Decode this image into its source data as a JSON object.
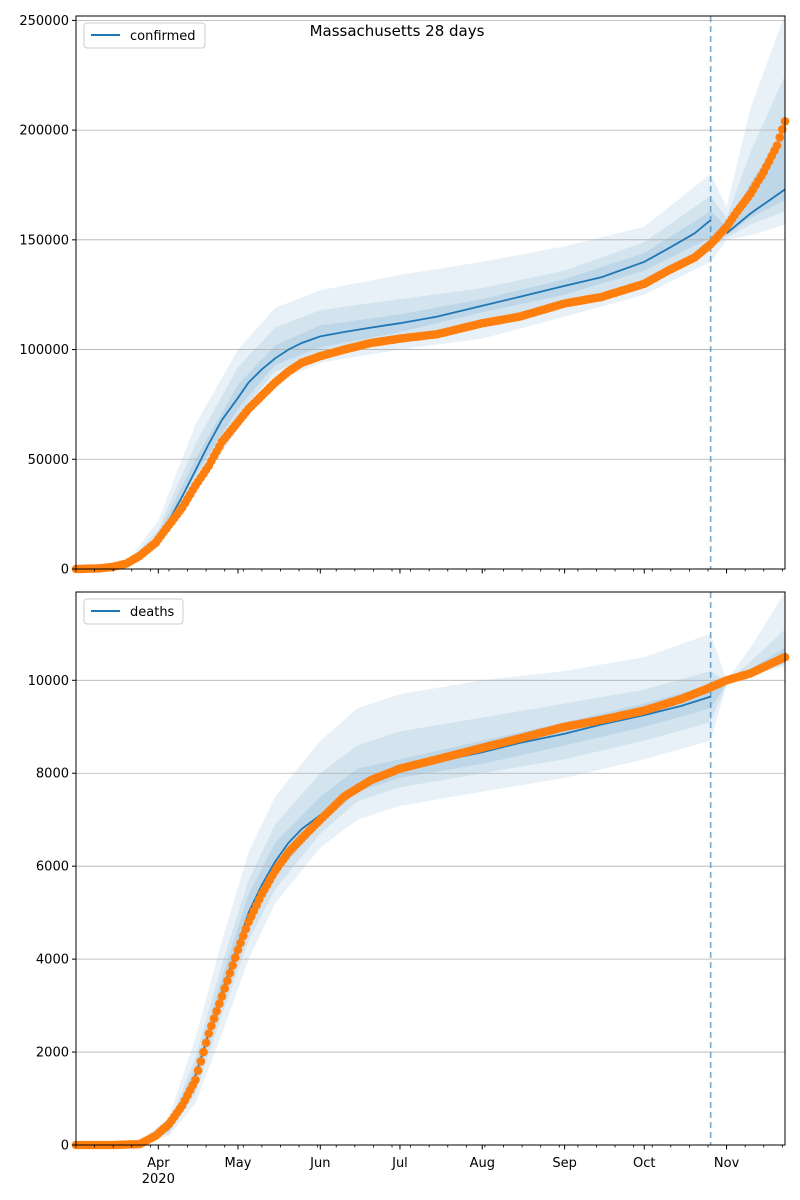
{
  "figure": {
    "title": "Massachusetts 28 days"
  },
  "colors": {
    "model_line": "#1f77b4",
    "observed_points": "#ff7f0e",
    "band_fill": "#1f77b4",
    "forecast_marker": "#1f77b4",
    "grid": "#b0b0b0"
  },
  "x_axis": {
    "tick_labels": [
      "Apr",
      "May",
      "Jun",
      "Jul",
      "Aug",
      "Sep",
      "Oct",
      "Nov"
    ],
    "tick_dates": [
      "2020-04-01",
      "2020-05-01",
      "2020-06-01",
      "2020-07-01",
      "2020-08-01",
      "2020-09-01",
      "2020-10-01",
      "2020-11-01"
    ],
    "year_label": "2020",
    "range": [
      "2020-03-01",
      "2020-11-23"
    ],
    "forecast_start": "2020-10-26"
  },
  "chart_data": [
    {
      "type": "line",
      "panel": "top",
      "legend": [
        "confirmed"
      ],
      "legend_position": "top-left",
      "grid": "horizontal",
      "ylim": [
        0,
        252000
      ],
      "y_ticks": [
        0,
        50000,
        100000,
        150000,
        200000,
        250000
      ],
      "y_tick_labels": [
        "0",
        "50000",
        "100000",
        "150000",
        "200000",
        "250000"
      ],
      "model": {
        "name": "confirmed",
        "x": [
          "2020-03-01",
          "2020-03-10",
          "2020-03-20",
          "2020-03-25",
          "2020-03-31",
          "2020-04-05",
          "2020-04-10",
          "2020-04-15",
          "2020-04-20",
          "2020-04-25",
          "2020-05-01",
          "2020-05-05",
          "2020-05-10",
          "2020-05-15",
          "2020-05-20",
          "2020-05-25",
          "2020-06-01",
          "2020-06-10",
          "2020-06-20",
          "2020-07-01",
          "2020-07-15",
          "2020-08-01",
          "2020-08-15",
          "2020-09-01",
          "2020-09-15",
          "2020-10-01",
          "2020-10-10",
          "2020-10-20",
          "2020-10-26",
          "2020-11-01",
          "2020-11-10",
          "2020-11-23"
        ],
        "y": [
          0,
          200,
          1500,
          5000,
          12000,
          22000,
          33000,
          45000,
          57000,
          68000,
          78000,
          85000,
          91000,
          96000,
          100000,
          103000,
          106000,
          108000,
          110000,
          112000,
          115000,
          120000,
          124000,
          129000,
          133000,
          140000,
          146000,
          153000,
          159000,
          153000,
          162000,
          173000
        ]
      },
      "bands": [
        {
          "name": "outer",
          "x": [
            "2020-03-01",
            "2020-03-20",
            "2020-04-01",
            "2020-04-15",
            "2020-05-01",
            "2020-05-15",
            "2020-06-01",
            "2020-07-01",
            "2020-08-01",
            "2020-09-01",
            "2020-10-01",
            "2020-10-26",
            "2020-11-01",
            "2020-11-10",
            "2020-11-23"
          ],
          "lower": [
            0,
            500,
            10000,
            35000,
            64000,
            85000,
            94000,
            100000,
            105000,
            115000,
            125000,
            140000,
            150000,
            152000,
            157000
          ],
          "upper": [
            0,
            3000,
            22000,
            66000,
            100000,
            119000,
            127000,
            134000,
            140000,
            147000,
            156000,
            180000,
            165000,
            210000,
            253000
          ]
        },
        {
          "name": "middle",
          "x": [
            "2020-03-01",
            "2020-03-20",
            "2020-04-01",
            "2020-04-15",
            "2020-05-01",
            "2020-05-15",
            "2020-06-01",
            "2020-07-01",
            "2020-08-01",
            "2020-09-01",
            "2020-10-01",
            "2020-10-26",
            "2020-11-01",
            "2020-11-10",
            "2020-11-23"
          ],
          "lower": [
            0,
            1000,
            12000,
            40000,
            70000,
            90000,
            98000,
            105000,
            112000,
            121000,
            131000,
            146000,
            151000,
            157000,
            163000
          ],
          "upper": [
            0,
            2000,
            18000,
            57000,
            92000,
            110000,
            118000,
            123000,
            128000,
            136000,
            149000,
            170000,
            160000,
            190000,
            225000
          ]
        },
        {
          "name": "inner",
          "x": [
            "2020-03-01",
            "2020-03-20",
            "2020-04-01",
            "2020-04-15",
            "2020-05-01",
            "2020-05-15",
            "2020-06-01",
            "2020-07-01",
            "2020-08-01",
            "2020-09-01",
            "2020-10-01",
            "2020-10-26",
            "2020-11-01",
            "2020-11-10",
            "2020-11-23"
          ],
          "lower": [
            0,
            1300,
            13000,
            43000,
            73000,
            93000,
            101000,
            108000,
            117000,
            125000,
            136000,
            151000,
            152000,
            160000,
            168000
          ],
          "upper": [
            0,
            1700,
            16000,
            50000,
            84000,
            102000,
            111000,
            116000,
            123000,
            132000,
            144000,
            163000,
            156000,
            176000,
            200000
          ]
        }
      ],
      "observed": {
        "x": [
          "2020-03-01",
          "2020-03-10",
          "2020-03-15",
          "2020-03-20",
          "2020-03-25",
          "2020-03-31",
          "2020-04-05",
          "2020-04-10",
          "2020-04-15",
          "2020-04-20",
          "2020-04-25",
          "2020-05-01",
          "2020-05-05",
          "2020-05-10",
          "2020-05-15",
          "2020-05-20",
          "2020-05-25",
          "2020-06-01",
          "2020-06-10",
          "2020-06-20",
          "2020-07-01",
          "2020-07-15",
          "2020-08-01",
          "2020-08-15",
          "2020-09-01",
          "2020-09-15",
          "2020-10-01",
          "2020-10-10",
          "2020-10-20",
          "2020-10-26",
          "2020-11-01",
          "2020-11-05",
          "2020-11-10",
          "2020-11-15",
          "2020-11-20",
          "2020-11-23"
        ],
        "y": [
          0,
          300,
          1000,
          2500,
          6000,
          12000,
          20000,
          28000,
          38000,
          47000,
          58000,
          67000,
          73000,
          79000,
          85000,
          90000,
          94000,
          97000,
          100000,
          103000,
          105000,
          107000,
          112000,
          115000,
          121000,
          124000,
          130000,
          136000,
          142000,
          148000,
          156000,
          163000,
          171000,
          181000,
          193000,
          204000
        ]
      }
    },
    {
      "type": "line",
      "panel": "bottom",
      "legend": [
        "deaths"
      ],
      "legend_position": "top-left",
      "grid": "horizontal",
      "ylim": [
        0,
        11900
      ],
      "y_ticks": [
        0,
        2000,
        4000,
        6000,
        8000,
        10000
      ],
      "y_tick_labels": [
        "0",
        "2000",
        "4000",
        "6000",
        "8000",
        "10000"
      ],
      "model": {
        "name": "deaths",
        "x": [
          "2020-03-01",
          "2020-03-20",
          "2020-03-31",
          "2020-04-05",
          "2020-04-10",
          "2020-04-15",
          "2020-04-20",
          "2020-04-25",
          "2020-05-01",
          "2020-05-05",
          "2020-05-10",
          "2020-05-15",
          "2020-05-20",
          "2020-05-25",
          "2020-06-01",
          "2020-06-10",
          "2020-06-20",
          "2020-07-01",
          "2020-07-15",
          "2020-08-01",
          "2020-08-15",
          "2020-09-01",
          "2020-09-15",
          "2020-10-01",
          "2020-10-15",
          "2020-10-26",
          "2020-11-01",
          "2020-11-10",
          "2020-11-23"
        ],
        "y": [
          0,
          20,
          150,
          350,
          800,
          1500,
          2400,
          3300,
          4300,
          5000,
          5600,
          6100,
          6500,
          6800,
          7100,
          7500,
          7800,
          8050,
          8250,
          8450,
          8650,
          8850,
          9050,
          9250,
          9450,
          9650,
          9950,
          10150,
          10450
        ]
      },
      "bands": [
        {
          "name": "outer",
          "x": [
            "2020-03-01",
            "2020-03-25",
            "2020-04-05",
            "2020-04-15",
            "2020-04-25",
            "2020-05-05",
            "2020-05-15",
            "2020-06-01",
            "2020-06-15",
            "2020-07-01",
            "2020-08-01",
            "2020-09-01",
            "2020-10-01",
            "2020-10-26",
            "2020-11-01",
            "2020-11-10",
            "2020-11-23"
          ],
          "lower": [
            0,
            20,
            200,
            900,
            2400,
            4000,
            5200,
            6400,
            7000,
            7300,
            7600,
            7900,
            8300,
            8700,
            9900,
            10100,
            10300
          ],
          "upper": [
            0,
            80,
            600,
            2300,
            4400,
            6300,
            7500,
            8700,
            9400,
            9700,
            10000,
            10200,
            10500,
            11000,
            10000,
            10700,
            11900
          ]
        },
        {
          "name": "middle",
          "x": [
            "2020-03-01",
            "2020-03-25",
            "2020-04-05",
            "2020-04-15",
            "2020-04-25",
            "2020-05-05",
            "2020-05-15",
            "2020-06-01",
            "2020-06-15",
            "2020-07-01",
            "2020-08-01",
            "2020-09-01",
            "2020-10-01",
            "2020-10-26",
            "2020-11-01",
            "2020-11-10",
            "2020-11-23"
          ],
          "lower": [
            0,
            30,
            250,
            1100,
            2800,
            4400,
            5500,
            6700,
            7400,
            7700,
            8000,
            8300,
            8700,
            9100,
            9920,
            10120,
            10350
          ],
          "upper": [
            0,
            60,
            450,
            1900,
            3900,
            5700,
            6900,
            8000,
            8600,
            8900,
            9200,
            9500,
            9800,
            10200,
            9980,
            10400,
            11100
          ]
        },
        {
          "name": "inner",
          "x": [
            "2020-03-01",
            "2020-03-25",
            "2020-04-05",
            "2020-04-15",
            "2020-04-25",
            "2020-05-05",
            "2020-05-15",
            "2020-06-01",
            "2020-06-15",
            "2020-07-01",
            "2020-08-01",
            "2020-09-01",
            "2020-10-01",
            "2020-10-26",
            "2020-11-01",
            "2020-11-10",
            "2020-11-23"
          ],
          "lower": [
            0,
            35,
            300,
            1300,
            3100,
            4700,
            5800,
            6900,
            7600,
            7900,
            8200,
            8600,
            9000,
            9400,
            9930,
            10130,
            10380
          ],
          "upper": [
            0,
            50,
            400,
            1700,
            3600,
            5400,
            6500,
            7500,
            8100,
            8300,
            8700,
            9100,
            9500,
            9900,
            9960,
            10250,
            10700
          ]
        }
      ],
      "observed": {
        "x": [
          "2020-03-01",
          "2020-03-15",
          "2020-03-25",
          "2020-03-31",
          "2020-04-05",
          "2020-04-10",
          "2020-04-15",
          "2020-04-20",
          "2020-04-25",
          "2020-05-01",
          "2020-05-05",
          "2020-05-10",
          "2020-05-15",
          "2020-05-20",
          "2020-05-25",
          "2020-06-01",
          "2020-06-10",
          "2020-06-20",
          "2020-07-01",
          "2020-07-15",
          "2020-08-01",
          "2020-08-15",
          "2020-09-01",
          "2020-09-15",
          "2020-10-01",
          "2020-10-15",
          "2020-10-26",
          "2020-11-01",
          "2020-11-10",
          "2020-11-23"
        ],
        "y": [
          0,
          0,
          20,
          200,
          450,
          850,
          1400,
          2400,
          3200,
          4200,
          4800,
          5400,
          5900,
          6300,
          6600,
          7000,
          7500,
          7850,
          8100,
          8300,
          8550,
          8750,
          9000,
          9150,
          9350,
          9600,
          9850,
          10000,
          10150,
          10500
        ]
      }
    }
  ]
}
